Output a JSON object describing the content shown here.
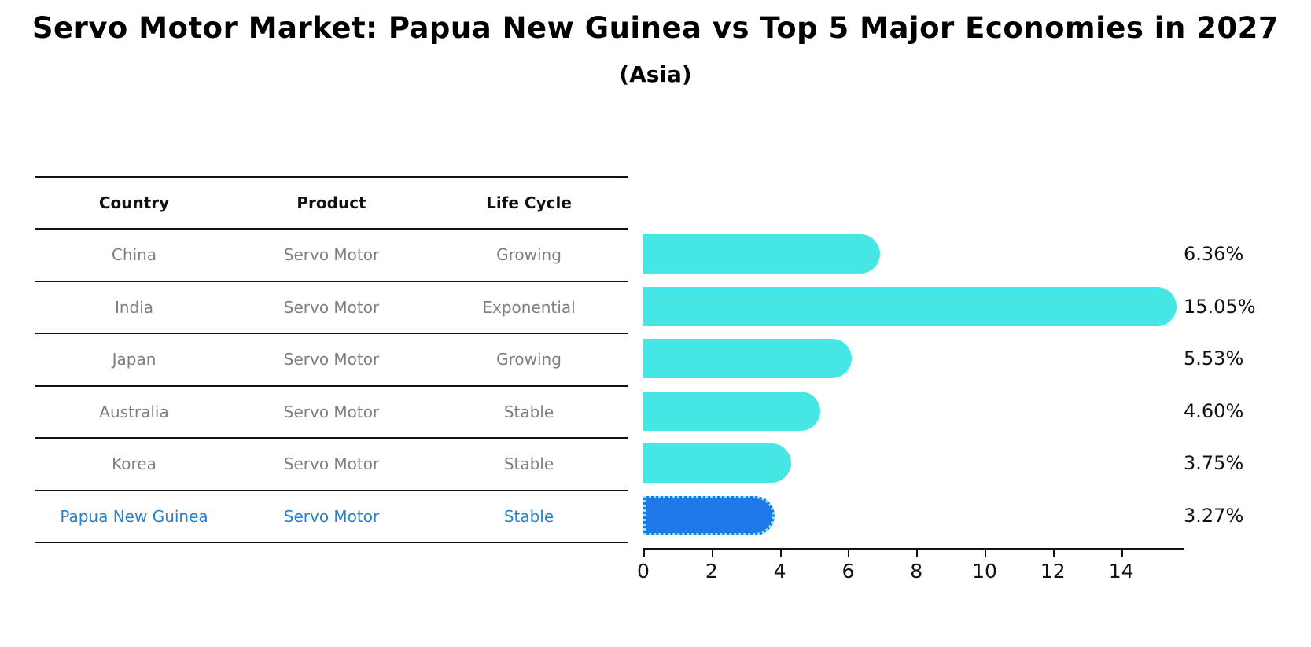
{
  "title": "Servo Motor Market: Papua New Guinea vs Top 5 Major Economies in 2027",
  "subtitle": "(Asia)",
  "table": {
    "headers": [
      "Country",
      "Product",
      "Life Cycle"
    ],
    "rows": [
      {
        "country": "China",
        "product": "Servo Motor",
        "life_cycle": "Growing",
        "highlight": false
      },
      {
        "country": "India",
        "product": "Servo Motor",
        "life_cycle": "Exponential",
        "highlight": false
      },
      {
        "country": "Japan",
        "product": "Servo Motor",
        "life_cycle": "Growing",
        "highlight": false
      },
      {
        "country": "Australia",
        "product": "Servo Motor",
        "life_cycle": "Stable",
        "highlight": false
      },
      {
        "country": "Korea",
        "product": "Servo Motor",
        "life_cycle": "Stable",
        "highlight": false
      },
      {
        "country": "Papua New Guinea",
        "product": "Servo Motor",
        "life_cycle": "Stable",
        "highlight": true
      }
    ]
  },
  "chart_data": {
    "type": "bar",
    "orientation": "horizontal",
    "categories": [
      "China",
      "India",
      "Japan",
      "Australia",
      "Korea",
      "Papua New Guinea"
    ],
    "values": [
      6.36,
      15.05,
      5.53,
      4.6,
      3.75,
      3.27
    ],
    "value_labels": [
      "6.36%",
      "15.05%",
      "5.53%",
      "4.60%",
      "3.75%",
      "3.27%"
    ],
    "highlight_index": 5,
    "xticks": [
      0,
      2,
      4,
      6,
      8,
      10,
      12,
      14
    ],
    "xlim": [
      0,
      15.83
    ],
    "grid": false,
    "legend": false,
    "colors": {
      "bar": "#46e6e4",
      "highlight_bar": "#1e78e8",
      "highlight_bar_border": "#8fede9",
      "value_label": "#111111",
      "row_text": "#7f7f7f",
      "highlight_text": "#2980c9",
      "axis": "#111111"
    }
  }
}
